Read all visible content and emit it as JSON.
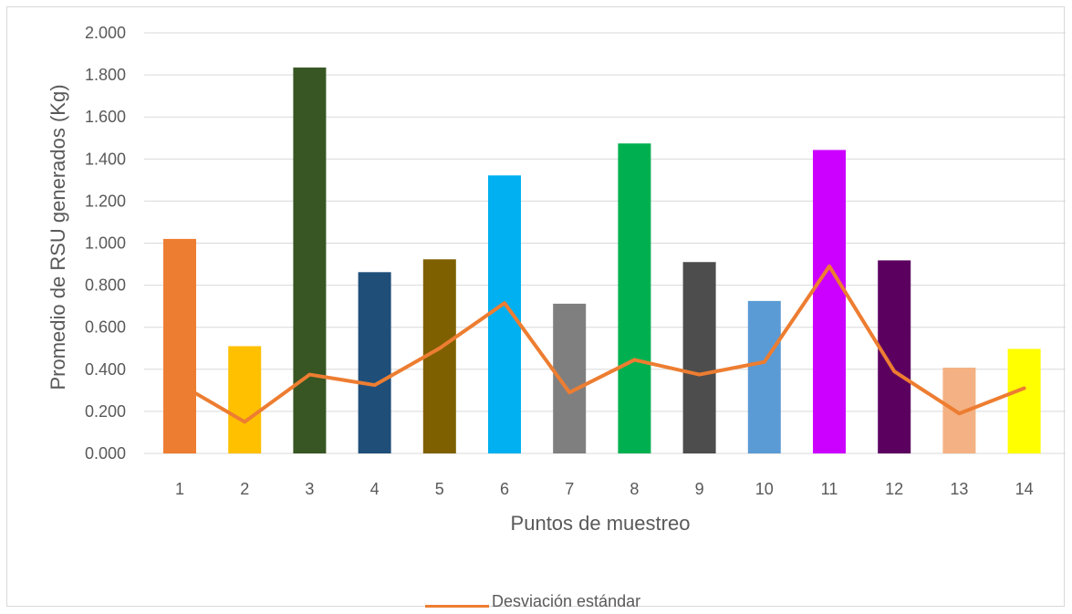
{
  "chart_data": {
    "type": "bar",
    "xlabel": "Puntos de muestreo",
    "ylabel": "Promedio de RSU generados (Kg)",
    "ylim": [
      0,
      2
    ],
    "yticks": [
      "0.000",
      "0.200",
      "0.400",
      "0.600",
      "0.800",
      "1.000",
      "1.200",
      "1.400",
      "1.600",
      "1.800",
      "2.000"
    ],
    "categories": [
      "1",
      "2",
      "3",
      "4",
      "5",
      "6",
      "7",
      "8",
      "9",
      "10",
      "11",
      "12",
      "13",
      "14"
    ],
    "values": [
      1.02,
      0.51,
      1.835,
      0.862,
      0.923,
      1.322,
      0.712,
      1.474,
      0.91,
      0.725,
      1.443,
      0.918,
      0.408,
      0.497
    ],
    "bar_colors": [
      "#ED7D31",
      "#FFC000",
      "#375623",
      "#1F4E79",
      "#7F6000",
      "#00B0F0",
      "#7F7F7F",
      "#00B050",
      "#4D4D4D",
      "#5B9BD5",
      "#CC00FF",
      "#5C0060",
      "#F4B183",
      "#FFFF00"
    ],
    "grid": true,
    "line_series": {
      "name": "Desviación estándar",
      "color": "#ED7D31",
      "values": [
        0.33,
        0.15,
        0.375,
        0.325,
        0.5,
        0.715,
        0.29,
        0.445,
        0.375,
        0.435,
        0.89,
        0.39,
        0.19,
        0.31
      ]
    },
    "legend_position": "bottom"
  }
}
